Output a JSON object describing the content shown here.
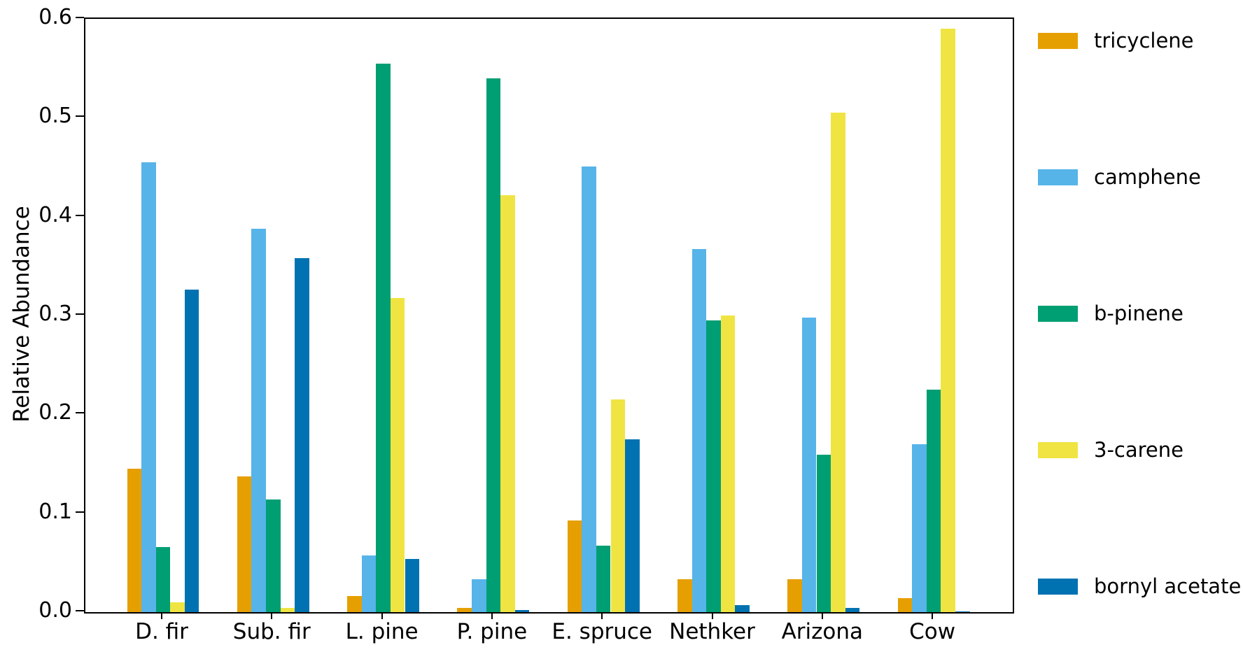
{
  "chart_data": {
    "type": "bar",
    "title": "",
    "xlabel": "",
    "ylabel": "Relative Abundance",
    "ylim": [
      0,
      0.6
    ],
    "yticks": [
      "0.0",
      "0.1",
      "0.2",
      "0.3",
      "0.4",
      "0.5",
      "0.6"
    ],
    "grid": false,
    "legend_position": "right",
    "axis_color": "#000000",
    "categories": [
      "D. fir",
      "Sub. fir",
      "L. pine",
      "P. pine",
      "E. spruce",
      "Nethker",
      "Arizona",
      "Cow"
    ],
    "series": [
      {
        "name": "tricyclene",
        "color": "#E69F00",
        "values": [
          0.145,
          0.137,
          0.016,
          0.004,
          0.093,
          0.033,
          0.033,
          0.014
        ]
      },
      {
        "name": "camphene",
        "color": "#56B4E9",
        "values": [
          0.455,
          0.388,
          0.057,
          0.033,
          0.451,
          0.367,
          0.298,
          0.17
        ]
      },
      {
        "name": "b-pinene",
        "color": "#009E73",
        "values": [
          0.066,
          0.114,
          0.555,
          0.54,
          0.067,
          0.295,
          0.159,
          0.225
        ]
      },
      {
        "name": "3-carene",
        "color": "#F0E442",
        "values": [
          0.01,
          0.004,
          0.318,
          0.422,
          0.215,
          0.3,
          0.505,
          0.59
        ]
      },
      {
        "name": "bornyl acetate",
        "color": "#0072B2",
        "values": [
          0.326,
          0.358,
          0.054,
          0.002,
          0.175,
          0.007,
          0.004,
          0.001
        ]
      }
    ]
  }
}
